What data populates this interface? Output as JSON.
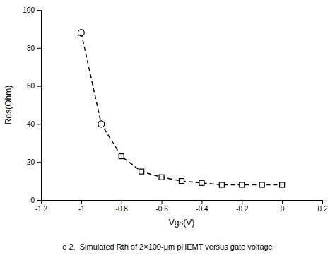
{
  "chart_data": {
    "type": "line",
    "x_label": "Vgs(V)",
    "y_label": "Rds(Ohm)",
    "caption": "e 2.  Simulated Rth of 2×100-μm pHEMT versus gate voltage",
    "xlim": [
      -1.2,
      0.2
    ],
    "ylim": [
      0,
      100
    ],
    "xticks": [
      -1.2,
      -1,
      -0.8,
      -0.6,
      -0.4,
      -0.2,
      0,
      0.2
    ],
    "yticks": [
      0,
      20,
      40,
      60,
      80,
      100
    ],
    "grid": false,
    "series": [
      {
        "type": "line",
        "x": [
          -1,
          -0.9,
          -0.8,
          -0.7,
          -0.6,
          -0.5,
          -0.4,
          -0.3,
          -0.2,
          -0.1,
          0
        ],
        "values": [
          88,
          40,
          23,
          15,
          12,
          10,
          9,
          8,
          8,
          8,
          8
        ],
        "color": "#000000",
        "line_style": "dashed",
        "marker": "none"
      },
      {
        "type": "scatter",
        "x": [
          -1,
          -0.9
        ],
        "values": [
          88,
          40
        ],
        "color": "#000000",
        "marker": "circle"
      },
      {
        "type": "scatter",
        "x": [
          -0.8,
          -0.7,
          -0.6,
          -0.5,
          -0.4,
          -0.3,
          -0.2,
          -0.1,
          0
        ],
        "values": [
          23,
          15,
          12,
          10,
          9,
          8,
          8,
          8,
          8
        ],
        "color": "#000000",
        "marker": "square"
      }
    ]
  }
}
